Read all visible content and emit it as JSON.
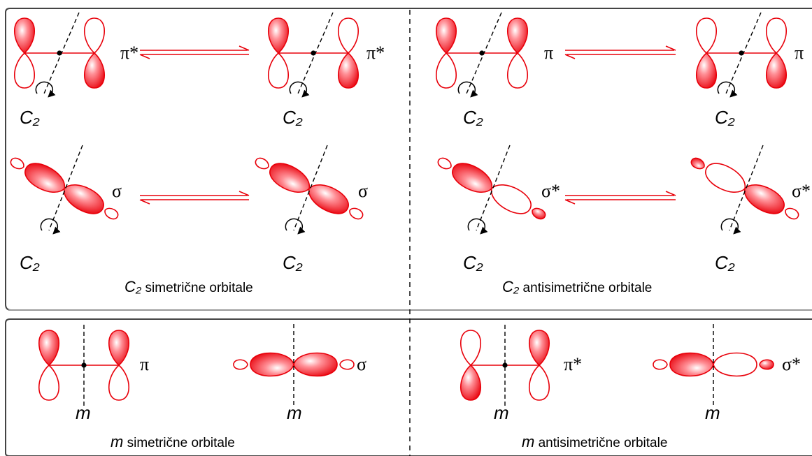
{
  "upper_panel": {
    "left": {
      "pi_row": {
        "left_label": "π*",
        "right_label": "π*",
        "left_axis": "C₂",
        "right_axis": "C₂"
      },
      "sigma_row": {
        "left_label": "σ",
        "right_label": "σ",
        "left_axis": "C₂",
        "right_axis": "C₂"
      },
      "caption_symbol": "C₂",
      "caption_text": " simetrične orbitale"
    },
    "right": {
      "pi_row": {
        "left_label": "π",
        "right_label": "π",
        "left_axis": "C₂",
        "right_axis": "C₂"
      },
      "sigma_row": {
        "left_label": "σ*",
        "right_label": "σ*",
        "left_axis": "C₂",
        "right_axis": "C₂"
      },
      "caption_symbol": "C₂",
      "caption_text": "  antisimetrične orbitale"
    }
  },
  "lower_panel": {
    "left": {
      "pi_label": "π",
      "sigma_label": "σ",
      "pi_axis": "m",
      "sigma_axis": "m",
      "caption_symbol": "m",
      "caption_text": " simetrične orbitale"
    },
    "right": {
      "pi_label": "π*",
      "sigma_label": "σ*",
      "pi_axis": "m",
      "sigma_axis": "m",
      "caption_symbol": "m",
      "caption_text": " antisimetrične orbitale"
    }
  },
  "colors": {
    "lobe_fill": "#f0000c",
    "lobe_outline": "#e8000a",
    "line": "#000000",
    "frame": "#444444"
  }
}
